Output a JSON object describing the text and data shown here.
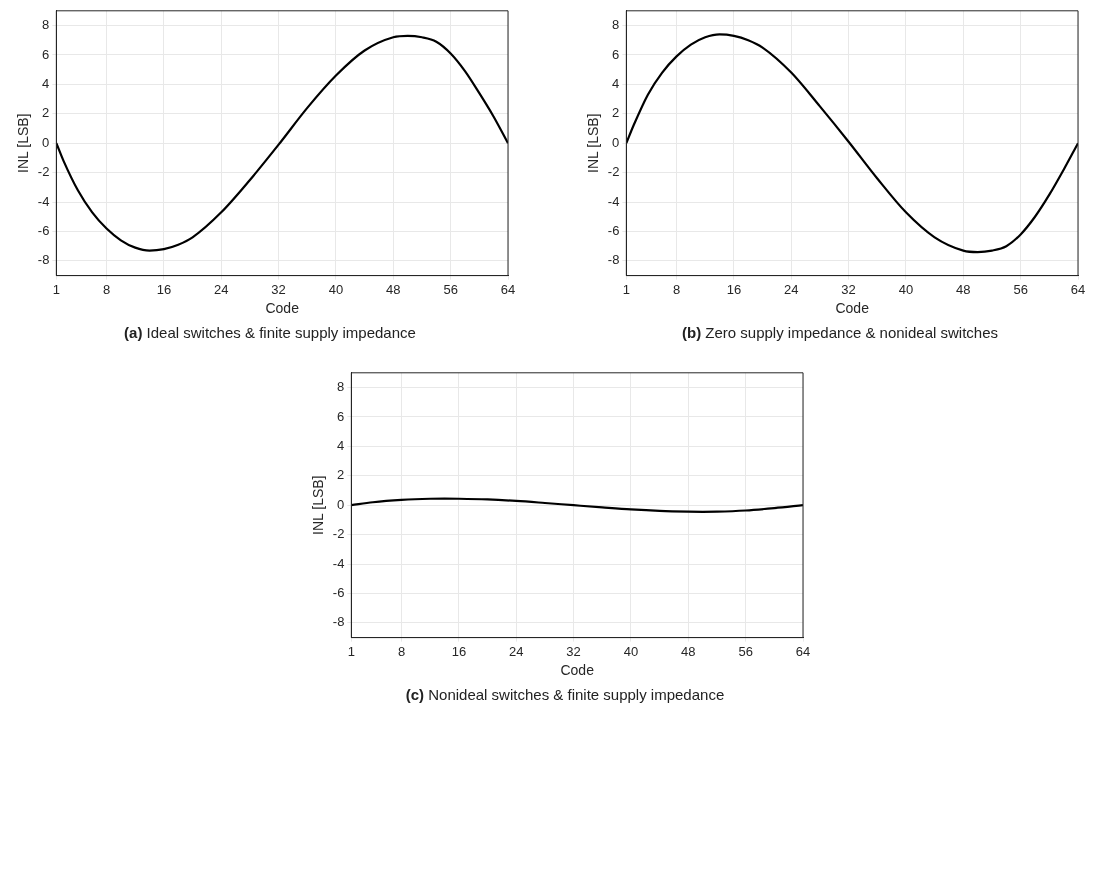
{
  "chart_data": [
    {
      "type": "line",
      "title": "(a) Ideal switches & finite supply impedance",
      "xlabel": "Code",
      "ylabel": "INL [LSB]",
      "x": [
        1,
        2,
        4,
        6,
        8,
        10,
        12,
        14,
        16,
        18,
        20,
        24,
        28,
        32,
        36,
        40,
        44,
        48,
        50,
        52,
        54,
        56,
        58,
        60,
        62,
        64
      ],
      "series": [
        {
          "color": "#000000",
          "values": [
            0,
            -1.2,
            -3.2,
            -4.7,
            -5.8,
            -6.6,
            -7.1,
            -7.3,
            -7.2,
            -6.9,
            -6.4,
            -4.7,
            -2.5,
            -0.1,
            2.4,
            4.6,
            6.3,
            7.2,
            7.3,
            7.2,
            6.9,
            6.1,
            4.9,
            3.4,
            1.8,
            0
          ]
        }
      ],
      "xlim": [
        1,
        64
      ],
      "xticks": [
        1,
        8,
        16,
        24,
        32,
        40,
        48,
        56,
        64
      ],
      "ylim": [
        -9,
        9
      ],
      "yticks": [
        -8,
        -6,
        -4,
        -2,
        0,
        2,
        4,
        6,
        8
      ],
      "grid": true,
      "legend": false,
      "marker": "none",
      "line_style": "solid"
    },
    {
      "type": "line",
      "title": "(b) Zero supply impedance & nonideal switches",
      "xlabel": "Code",
      "ylabel": "INL [LSB]",
      "x": [
        1,
        2,
        4,
        6,
        8,
        10,
        12,
        14,
        16,
        18,
        20,
        24,
        28,
        32,
        36,
        40,
        44,
        48,
        50,
        52,
        54,
        56,
        58,
        60,
        62,
        64
      ],
      "series": [
        {
          "color": "#000000",
          "values": [
            0,
            1.2,
            3.3,
            4.8,
            5.9,
            6.7,
            7.2,
            7.4,
            7.3,
            7.0,
            6.5,
            4.8,
            2.5,
            0.1,
            -2.4,
            -4.7,
            -6.4,
            -7.3,
            -7.4,
            -7.3,
            -7.0,
            -6.2,
            -5.0,
            -3.5,
            -1.8,
            0
          ]
        }
      ],
      "xlim": [
        1,
        64
      ],
      "xticks": [
        1,
        8,
        16,
        24,
        32,
        40,
        48,
        56,
        64
      ],
      "ylim": [
        -9,
        9
      ],
      "yticks": [
        -8,
        -6,
        -4,
        -2,
        0,
        2,
        4,
        6,
        8
      ],
      "grid": true,
      "legend": false,
      "marker": "none",
      "line_style": "solid"
    },
    {
      "type": "line",
      "title": "(c) Nonideal switches & finite supply impedance",
      "xlabel": "Code",
      "ylabel": "INL [LSB]",
      "x": [
        1,
        4,
        8,
        12,
        14,
        16,
        20,
        24,
        28,
        32,
        36,
        40,
        44,
        48,
        50,
        52,
        56,
        60,
        64
      ],
      "series": [
        {
          "color": "#000000",
          "values": [
            0,
            0.2,
            0.36,
            0.44,
            0.45,
            0.44,
            0.39,
            0.29,
            0.15,
            0,
            -0.15,
            -0.29,
            -0.39,
            -0.44,
            -0.45,
            -0.44,
            -0.36,
            -0.2,
            0
          ]
        }
      ],
      "xlim": [
        1,
        64
      ],
      "xticks": [
        1,
        8,
        16,
        24,
        32,
        40,
        48,
        56,
        64
      ],
      "ylim": [
        -9,
        9
      ],
      "yticks": [
        -8,
        -6,
        -4,
        -2,
        0,
        2,
        4,
        6,
        8
      ],
      "grid": true,
      "legend": false,
      "marker": "none",
      "line_style": "solid"
    }
  ]
}
